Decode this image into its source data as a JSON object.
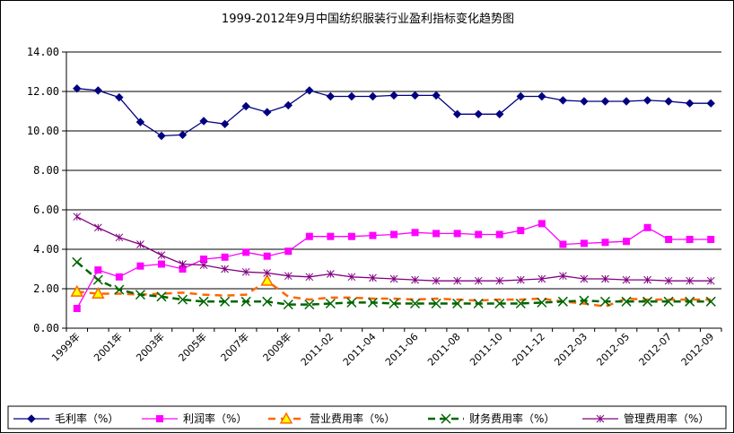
{
  "chart_data": {
    "type": "line",
    "title": "1999-2012年9月中国纺织服装行业盈利指标变化趋势图",
    "xlabel": "",
    "ylabel": "",
    "ylim": [
      0,
      14
    ],
    "yticks": [
      "0.00",
      "2.00",
      "4.00",
      "6.00",
      "8.00",
      "10.00",
      "12.00",
      "14.00"
    ],
    "grid": "horizontal",
    "legend_position": "bottom",
    "x": [
      "1999年",
      "2000年",
      "2001年",
      "2002年",
      "2003年",
      "2004年",
      "2005年",
      "2006年",
      "2007年",
      "2008年",
      "2009年",
      "2010年",
      "2011-02",
      "2011-03",
      "2011-04",
      "2011-05",
      "2011-06",
      "2011-07",
      "2011-08",
      "2011-09",
      "2011-10",
      "2011-11",
      "2011-12",
      "2012-02",
      "2012-03",
      "2012-04",
      "2012-05",
      "2012-06",
      "2012-07",
      "2012-08",
      "2012-09"
    ],
    "x_labels_shown": [
      "1999年",
      "2001年",
      "2003年",
      "2005年",
      "2007年",
      "2009年",
      "2011-02",
      "2011-04",
      "2011-06",
      "2011-08",
      "2011-10",
      "2011-12",
      "2012-03",
      "2012-05",
      "2012-07",
      "2012-09"
    ],
    "series": [
      {
        "name": "毛利率（%）",
        "color": "#000080",
        "marker": "diamond",
        "values": [
          12.15,
          12.05,
          11.7,
          10.45,
          9.75,
          9.8,
          10.5,
          10.35,
          11.25,
          10.95,
          11.3,
          12.05,
          11.75,
          11.75,
          11.75,
          11.8,
          11.8,
          11.8,
          10.85,
          10.85,
          10.85,
          11.75,
          11.75,
          11.55,
          11.5,
          11.5,
          11.5,
          11.55,
          11.5,
          11.4,
          11.4
        ]
      },
      {
        "name": "利润率（%）",
        "color": "#FF00FF",
        "marker": "square",
        "values": [
          1.0,
          2.95,
          2.6,
          3.15,
          3.25,
          3.0,
          3.5,
          3.6,
          3.85,
          3.65,
          3.9,
          4.65,
          4.65,
          4.65,
          4.7,
          4.75,
          4.85,
          4.8,
          4.8,
          4.75,
          4.75,
          4.95,
          5.3,
          4.25,
          4.3,
          4.35,
          4.4,
          5.1,
          4.5,
          4.5,
          4.5
        ]
      },
      {
        "name": "营业费用率（%）",
        "color": "#FF6600",
        "marker": "triangle",
        "values": [
          1.85,
          1.75,
          1.75,
          1.7,
          1.75,
          1.8,
          1.7,
          1.65,
          1.7,
          2.4,
          1.6,
          1.45,
          1.55,
          1.55,
          1.5,
          1.5,
          1.45,
          1.5,
          1.45,
          1.4,
          1.45,
          1.45,
          1.5,
          1.35,
          1.25,
          1.1,
          1.5,
          1.45,
          1.45,
          1.45,
          1.45
        ]
      },
      {
        "name": "财务费用率（%）",
        "color": "#006600",
        "marker": "x",
        "values": [
          3.35,
          2.45,
          1.95,
          1.7,
          1.6,
          1.45,
          1.35,
          1.35,
          1.35,
          1.35,
          1.2,
          1.2,
          1.25,
          1.3,
          1.3,
          1.25,
          1.25,
          1.25,
          1.25,
          1.25,
          1.25,
          1.25,
          1.3,
          1.35,
          1.4,
          1.35,
          1.35,
          1.35,
          1.35,
          1.35,
          1.35
        ]
      },
      {
        "name": "管理费用率（%）",
        "color": "#800080",
        "marker": "asterisk",
        "values": [
          5.65,
          5.1,
          4.6,
          4.25,
          3.7,
          3.25,
          3.2,
          3.0,
          2.85,
          2.8,
          2.65,
          2.6,
          2.75,
          2.6,
          2.55,
          2.5,
          2.45,
          2.4,
          2.4,
          2.4,
          2.4,
          2.45,
          2.5,
          2.65,
          2.5,
          2.5,
          2.45,
          2.45,
          2.4,
          2.4,
          2.4
        ]
      }
    ]
  }
}
